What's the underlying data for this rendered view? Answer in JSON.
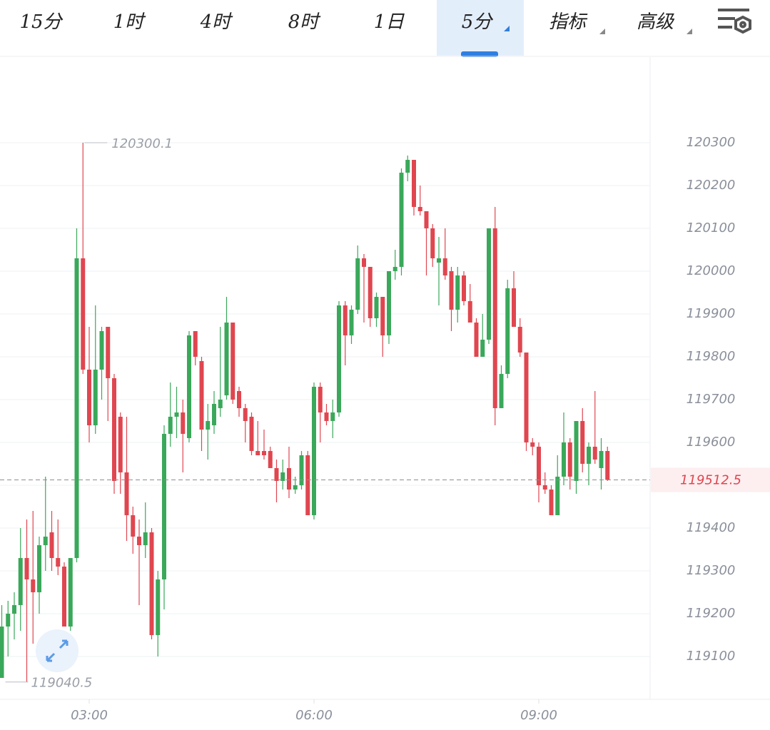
{
  "toolbar": {
    "items": [
      "15分",
      "1时",
      "4时",
      "8时",
      "1日",
      "5分",
      "指标",
      "高级"
    ],
    "active": 5
  },
  "chart_data": {
    "type": "candlestick",
    "x": [
      "01:50",
      "01:55",
      "02:00",
      "02:05",
      "02:10",
      "02:15",
      "02:20",
      "02:25",
      "02:30",
      "02:35",
      "02:40",
      "02:45",
      "02:50",
      "02:55",
      "03:00",
      "03:05",
      "03:10",
      "03:15",
      "03:20",
      "03:25",
      "03:30",
      "03:35",
      "03:40",
      "03:45",
      "03:50",
      "03:55",
      "04:00",
      "04:05",
      "04:10",
      "04:15",
      "04:20",
      "04:25",
      "04:30",
      "04:35",
      "04:40",
      "04:45",
      "04:50",
      "04:55",
      "05:00",
      "05:05",
      "05:10",
      "05:15",
      "05:20",
      "05:25",
      "05:30",
      "05:35",
      "05:40",
      "05:45",
      "05:50",
      "05:55",
      "06:00",
      "06:05",
      "06:10",
      "06:15",
      "06:20",
      "06:25",
      "06:30",
      "06:35",
      "06:40",
      "06:45",
      "06:50",
      "06:55",
      "07:00",
      "07:05",
      "07:10",
      "07:15",
      "07:20",
      "07:25",
      "07:30",
      "07:35",
      "07:40",
      "07:45",
      "07:50",
      "07:55",
      "08:00",
      "08:05",
      "08:10",
      "08:15",
      "08:20",
      "08:25",
      "08:30",
      "08:35",
      "08:40",
      "08:45",
      "08:50",
      "08:55",
      "09:00",
      "09:05",
      "09:10",
      "09:15",
      "09:20",
      "09:25",
      "09:30",
      "09:35",
      "09:40",
      "09:45",
      "09:50",
      "09:55"
    ],
    "open": [
      119050,
      119170,
      119200,
      119220,
      119330,
      119280,
      119250,
      119360,
      119390,
      119330,
      119310,
      119170,
      119330,
      120030,
      119770,
      119640,
      119770,
      119870,
      119750,
      119660,
      119530,
      119430,
      119380,
      119360,
      119390,
      119150,
      119280,
      119620,
      119660,
      119670,
      119610,
      119860,
      119790,
      119630,
      119640,
      119680,
      119710,
      119880,
      119720,
      119680,
      119660,
      119580,
      119580,
      119580,
      119540,
      119510,
      119540,
      119490,
      119500,
      119570,
      119430,
      119730,
      119670,
      119650,
      119670,
      119920,
      119850,
      119910,
      120030,
      120010,
      119890,
      119940,
      119850,
      120000,
      120010,
      120230,
      120260,
      120150,
      120140,
      120100,
      120020,
      120030,
      120000,
      119910,
      119990,
      119930,
      119880,
      119800,
      119840,
      120100,
      119680,
      119760,
      119960,
      119870,
      119810,
      119600,
      119590,
      119500,
      119490,
      119430,
      119520,
      119600,
      119510,
      119650,
      119550,
      119590,
      119540,
      119580
    ],
    "high": [
      119220,
      119230,
      119250,
      119400,
      119420,
      119440,
      119380,
      119520,
      119440,
      119420,
      119320,
      119330,
      120100,
      120300.1,
      119870,
      119920,
      119870,
      119870,
      119760,
      119670,
      119660,
      119450,
      119420,
      119460,
      119400,
      119300,
      119640,
      119740,
      119730,
      119700,
      119860,
      119860,
      119800,
      119690,
      119720,
      119870,
      119940,
      119880,
      119730,
      119690,
      119670,
      119650,
      119630,
      119590,
      119560,
      119560,
      119590,
      119520,
      119580,
      119580,
      119740,
      119740,
      119690,
      119700,
      119930,
      119930,
      119920,
      120060,
      120040,
      120010,
      119950,
      119940,
      120000,
      120050,
      120240,
      120270,
      120260,
      120200,
      120140,
      120110,
      120080,
      120100,
      120010,
      120010,
      120000,
      119970,
      119890,
      119900,
      120100,
      120150,
      119780,
      119980,
      120000,
      119890,
      119810,
      119610,
      119600,
      119530,
      119500,
      119570,
      119670,
      119610,
      119650,
      119680,
      119600,
      119720,
      119610,
      119590
    ],
    "low": [
      119050,
      119100,
      119140,
      119160,
      119040.5,
      119130,
      119200,
      119300,
      119300,
      119290,
      119170,
      119160,
      119320,
      119760,
      119600,
      119620,
      119700,
      119650,
      119480,
      119480,
      119370,
      119340,
      119220,
      119330,
      119140,
      119100,
      119210,
      119590,
      119610,
      119530,
      119600,
      119780,
      119580,
      119560,
      119620,
      119660,
      119700,
      119690,
      119660,
      119600,
      119570,
      119570,
      119560,
      119540,
      119460,
      119490,
      119470,
      119480,
      119490,
      119430,
      119420,
      119600,
      119640,
      119610,
      119660,
      119780,
      119830,
      119900,
      119880,
      119870,
      119870,
      119800,
      119830,
      119980,
      119990,
      120210,
      120130,
      120130,
      119990,
      120010,
      119920,
      119980,
      119860,
      119880,
      119920,
      119880,
      119800,
      119800,
      119830,
      119640,
      119680,
      119750,
      119870,
      119800,
      119580,
      119570,
      119460,
      119480,
      119430,
      119430,
      119500,
      119490,
      119480,
      119530,
      119500,
      119550,
      119490,
      119510
    ],
    "close": [
      119170,
      119200,
      119220,
      119330,
      119280,
      119250,
      119360,
      119380,
      119330,
      119310,
      119170,
      119330,
      120030,
      119770,
      119640,
      119770,
      119860,
      119750,
      119510,
      119530,
      119430,
      119380,
      119360,
      119390,
      119150,
      119280,
      119620,
      119660,
      119670,
      119620,
      119850,
      119800,
      119630,
      119650,
      119690,
      119700,
      119880,
      119700,
      119680,
      119650,
      119580,
      119570,
      119570,
      119540,
      119510,
      119530,
      119490,
      119500,
      119570,
      119430,
      119730,
      119670,
      119650,
      119670,
      119920,
      119850,
      119910,
      120030,
      120010,
      119890,
      119940,
      119850,
      120000,
      120010,
      120230,
      120260,
      120150,
      120140,
      120100,
      120030,
      120030,
      119990,
      119910,
      119990,
      119930,
      119880,
      119800,
      119840,
      120100,
      119680,
      119760,
      119960,
      119870,
      119810,
      119600,
      119590,
      119500,
      119490,
      119430,
      119520,
      119600,
      119520,
      119650,
      119550,
      119590,
      119560,
      119580,
      119512.5
    ],
    "ylim": [
      119000,
      120500
    ],
    "yticks": [
      119100,
      119200,
      119300,
      119400,
      119500,
      119600,
      119700,
      119800,
      119900,
      120000,
      120100,
      120200,
      120300
    ],
    "xticks": [
      "03:00",
      "06:00",
      "09:00"
    ],
    "grid": true,
    "up_color": "#3aa85a",
    "down_color": "#e0464f"
  }
}
